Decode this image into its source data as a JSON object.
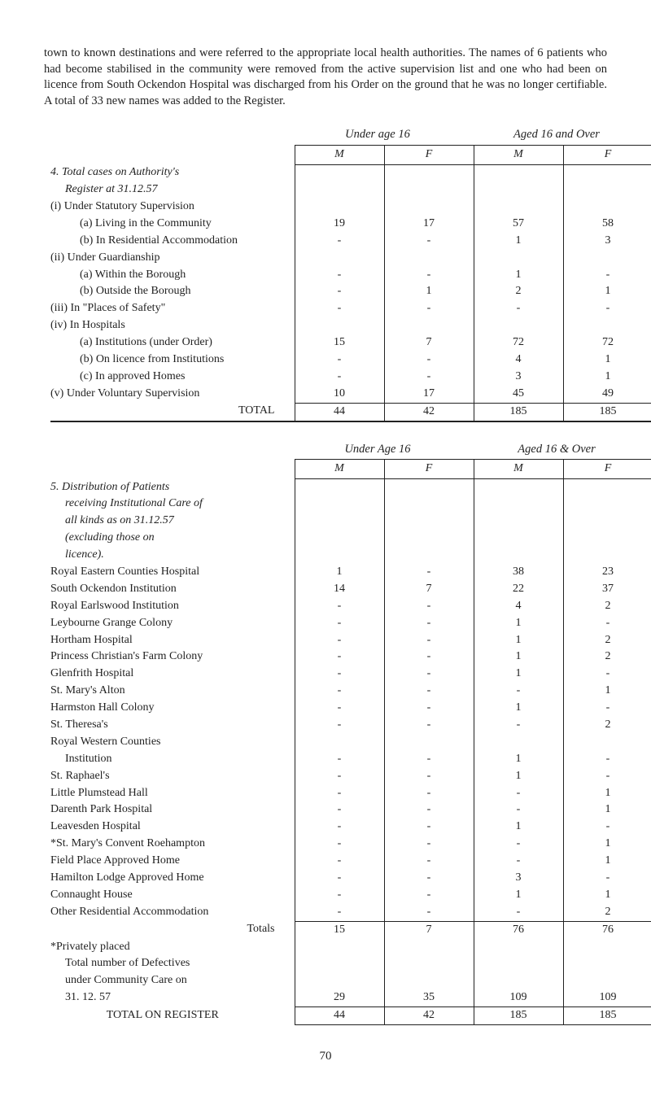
{
  "intro": "town to known destinations and were referred to the appropriate local health authorities. The names of 6 patients who had become stabilised in the community were removed from the active supervision list and one who had been on licence from South Ockendon Hospital was discharged from his Order on the ground that he was no longer certifiable. A total of 33 new names was added to the Register.",
  "t1": {
    "cap_left": "Under age 16",
    "cap_right": "Aged 16 and Over",
    "hdr": [
      "M",
      "F",
      "M",
      "F"
    ],
    "section_title_a": "4. Total cases on Authority's",
    "section_title_b": "Register at 31.12.57",
    "rows": [
      {
        "lbl": "(i) Under Statutory Supervision",
        "v": [
          "",
          "",
          "",
          ""
        ]
      },
      {
        "lbl": "(a) Living in the Community",
        "ind": 2,
        "v": [
          "19",
          "17",
          "57",
          "58"
        ]
      },
      {
        "lbl": "(b) In Residential Accommodation",
        "ind": 2,
        "v": [
          "-",
          "-",
          "1",
          "3"
        ]
      },
      {
        "lbl": "(ii) Under Guardianship",
        "v": [
          "",
          "",
          "",
          ""
        ]
      },
      {
        "lbl": "(a) Within the Borough",
        "ind": 2,
        "v": [
          "-",
          "-",
          "1",
          "-"
        ]
      },
      {
        "lbl": "(b) Outside the Borough",
        "ind": 2,
        "v": [
          "-",
          "1",
          "2",
          "1"
        ]
      },
      {
        "lbl": "(iii) In \"Places of Safety\"",
        "v": [
          "-",
          "-",
          "-",
          "-"
        ]
      },
      {
        "lbl": "(iv) In Hospitals",
        "v": [
          "",
          "",
          "",
          ""
        ]
      },
      {
        "lbl": "(a) Institutions (under Order)",
        "ind": 2,
        "v": [
          "15",
          "7",
          "72",
          "72"
        ]
      },
      {
        "lbl": "(b) On licence from Institutions",
        "ind": 2,
        "v": [
          "-",
          "-",
          "4",
          "1"
        ]
      },
      {
        "lbl": "(c) In approved Homes",
        "ind": 2,
        "v": [
          "-",
          "-",
          "3",
          "1"
        ]
      },
      {
        "lbl": "(v) Under Voluntary Supervision",
        "v": [
          "10",
          "17",
          "45",
          "49"
        ]
      }
    ],
    "total_lbl": "TOTAL",
    "total": [
      "44",
      "42",
      "185",
      "185"
    ]
  },
  "t2": {
    "cap_left": "Under Age 16",
    "cap_right": "Aged 16 & Over",
    "hdr": [
      "M",
      "F",
      "M",
      "F"
    ],
    "section_title_a": "5. Distribution of Patients",
    "section_title_b": "receiving Institutional Care of",
    "section_title_c": "all kinds as on 31.12.57",
    "section_title_d": "(excluding those on",
    "section_title_e": "licence).",
    "rows": [
      {
        "lbl": "Royal Eastern Counties Hospital",
        "v": [
          "1",
          "-",
          "38",
          "23"
        ]
      },
      {
        "lbl": "South Ockendon Institution",
        "v": [
          "14",
          "7",
          "22",
          "37"
        ]
      },
      {
        "lbl": "Royal Earlswood Institution",
        "v": [
          "-",
          "-",
          "4",
          "2"
        ]
      },
      {
        "lbl": "Leybourne Grange Colony",
        "v": [
          "-",
          "-",
          "1",
          "-"
        ]
      },
      {
        "lbl": "Hortham Hospital",
        "v": [
          "-",
          "-",
          "1",
          "2"
        ]
      },
      {
        "lbl": "Princess Christian's Farm Colony",
        "v": [
          "-",
          "-",
          "1",
          "2"
        ]
      },
      {
        "lbl": "Glenfrith Hospital",
        "v": [
          "-",
          "-",
          "1",
          "-"
        ]
      },
      {
        "lbl": "St. Mary's Alton",
        "v": [
          "-",
          "-",
          "-",
          "1"
        ]
      },
      {
        "lbl": "Harmston Hall Colony",
        "v": [
          "-",
          "-",
          "1",
          "-"
        ]
      },
      {
        "lbl": "St. Theresa's",
        "v": [
          "-",
          "-",
          "-",
          "2"
        ]
      },
      {
        "lbl": "Royal Western Counties",
        "v": [
          "",
          "",
          "",
          ""
        ]
      },
      {
        "lbl": "Institution",
        "ind": 1,
        "v": [
          "-",
          "-",
          "1",
          "-"
        ]
      },
      {
        "lbl": "St. Raphael's",
        "v": [
          "-",
          "-",
          "1",
          "-"
        ]
      },
      {
        "lbl": "Little Plumstead Hall",
        "v": [
          "-",
          "-",
          "-",
          "1"
        ]
      },
      {
        "lbl": "Darenth Park Hospital",
        "v": [
          "-",
          "-",
          "-",
          "1"
        ]
      },
      {
        "lbl": "Leavesden Hospital",
        "v": [
          "-",
          "-",
          "1",
          "-"
        ]
      },
      {
        "lbl": "*St. Mary's Convent Roehampton",
        "v": [
          "-",
          "-",
          "-",
          "1"
        ]
      },
      {
        "lbl": "Field Place Approved Home",
        "v": [
          "-",
          "-",
          "-",
          "1"
        ]
      },
      {
        "lbl": "Hamilton Lodge Approved Home",
        "v": [
          "-",
          "-",
          "3",
          "-"
        ]
      },
      {
        "lbl": "Connaught House",
        "v": [
          "-",
          "-",
          "1",
          "1"
        ]
      },
      {
        "lbl": "Other Residential Accommodation",
        "v": [
          "-",
          "-",
          "-",
          "2"
        ]
      }
    ],
    "totals_lbl": "Totals",
    "totals": [
      "15",
      "7",
      "76",
      "76"
    ],
    "priv": "*Privately placed",
    "comm_a": "Total number of Defectives",
    "comm_b": "under Community Care on",
    "comm_c": "31. 12. 57",
    "comm": [
      "29",
      "35",
      "109",
      "109"
    ],
    "grand_lbl": "TOTAL ON REGISTER",
    "grand": [
      "44",
      "42",
      "185",
      "185"
    ]
  },
  "page": "70"
}
